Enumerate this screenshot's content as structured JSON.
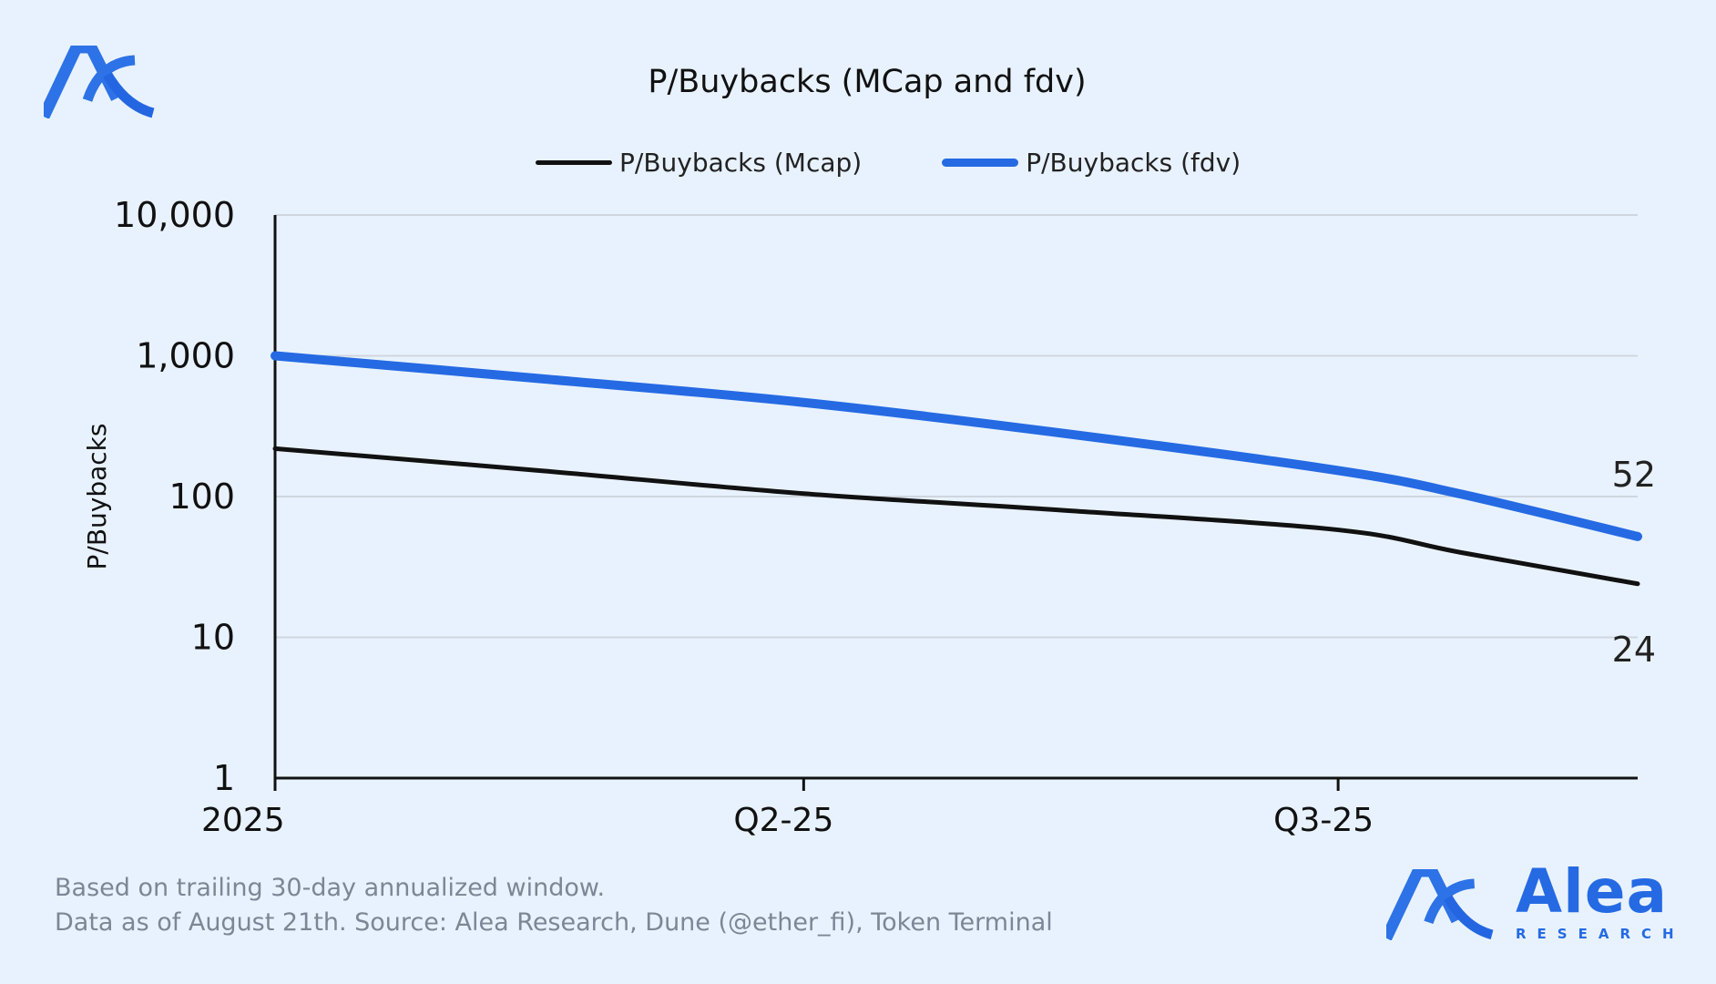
{
  "brand": {
    "name": "Alea",
    "subtitle": "RESEARCH",
    "color": "#256ae3"
  },
  "footer": {
    "line1": "Based on trailing 30-day annualized window.",
    "line2": "Data as of August 21th. Source: Alea Research, Dune (@ether_fi), Token Terminal"
  },
  "chart_data": {
    "type": "line",
    "title": "P/Buybacks (MCap and fdv)",
    "ylabel": "P/Buybacks",
    "xlabel": "",
    "yscale": "log",
    "ylim": [
      1,
      10000
    ],
    "yticks": [
      1,
      10,
      100,
      1000,
      10000
    ],
    "ytick_labels": [
      "1",
      "10",
      "100",
      "1,000",
      "10,000"
    ],
    "xlim": [
      "2025-01-01",
      "2025-08-21"
    ],
    "xticks": [
      "2025-01-01",
      "2025-04-01",
      "2025-07-01"
    ],
    "xtick_labels": [
      "2025",
      "Q2-25",
      "Q3-25"
    ],
    "grid": "horizontal",
    "legend": "top-center",
    "series": [
      {
        "name": "P/Buybacks (Mcap)",
        "color": "#111111",
        "x": [
          "2025-01-01",
          "2025-02-15",
          "2025-04-01",
          "2025-05-15",
          "2025-07-01",
          "2025-07-22",
          "2025-08-21"
        ],
        "values": [
          219,
          153,
          105,
          80,
          58,
          40,
          24
        ],
        "end_label": "24"
      },
      {
        "name": "P/Buybacks (fdv)",
        "color": "#256ae3",
        "x": [
          "2025-01-01",
          "2025-02-15",
          "2025-04-01",
          "2025-05-15",
          "2025-07-01",
          "2025-07-22",
          "2025-08-21"
        ],
        "values": [
          1000,
          689,
          466,
          282,
          153,
          104,
          52
        ],
        "end_label": "52"
      }
    ]
  }
}
